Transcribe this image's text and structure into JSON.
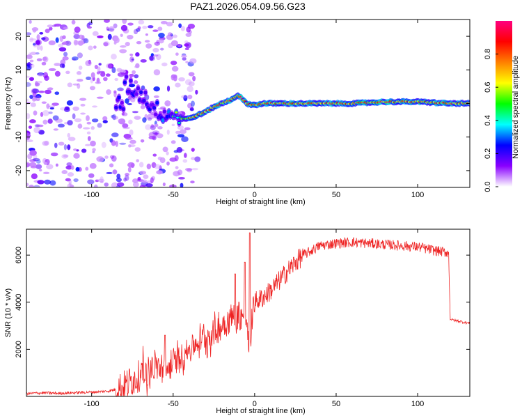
{
  "figure": {
    "title": "PAZ1.2026.054.09.56.G23"
  },
  "chart_data": [
    {
      "type": "heatmap",
      "title": "",
      "xlabel": "Height of straight line (km)",
      "ylabel": "Frequency (Hz)",
      "xlim": [
        -140,
        132
      ],
      "ylim": [
        -25,
        25
      ],
      "xticks": [
        -100,
        -50,
        0,
        50,
        100
      ],
      "yticks": [
        -20,
        -10,
        0,
        10,
        20
      ],
      "colorbar": {
        "label": "Normalized spectral amplitude",
        "range": [
          0,
          1
        ],
        "ticks": [
          0.0,
          0.2,
          0.4,
          0.6,
          0.8
        ],
        "tick_labels": [
          "0.0",
          "0.2",
          "0.4",
          "0.6",
          "0.8"
        ],
        "colormap": [
          "#ffffff",
          "#8a00ff",
          "#0000ff",
          "#00ffff",
          "#00ff00",
          "#ffff00",
          "#ff8000",
          "#ff0000",
          "#ff0080"
        ]
      },
      "ridge": [
        [
          -80,
          6
        ],
        [
          -70,
          3
        ],
        [
          -60,
          -2
        ],
        [
          -55,
          -3
        ],
        [
          -50,
          -3
        ],
        [
          -45,
          -4.5
        ],
        [
          -40,
          -4.5
        ],
        [
          -35,
          -3.5
        ],
        [
          -30,
          -2.5
        ],
        [
          -25,
          -1
        ],
        [
          -20,
          0
        ],
        [
          -15,
          1
        ],
        [
          -10,
          2.5
        ],
        [
          -8,
          1.5
        ],
        [
          -5,
          0
        ],
        [
          0,
          -0.5
        ],
        [
          5,
          0
        ],
        [
          20,
          0
        ],
        [
          40,
          0
        ],
        [
          60,
          0
        ],
        [
          80,
          0.5
        ],
        [
          100,
          0.5
        ],
        [
          120,
          0
        ],
        [
          132,
          0
        ]
      ]
    },
    {
      "type": "line",
      "title": "",
      "xlabel": "Height of straight line (km)",
      "ylabel": "SNR (10 * v/v)",
      "xlim": [
        -140,
        132
      ],
      "ylim": [
        0,
        7100
      ],
      "xticks": [
        -100,
        -50,
        0,
        50,
        100
      ],
      "yticks": [
        2000,
        4000,
        6000
      ],
      "color": "#ee2222",
      "series": [
        {
          "name": "SNR",
          "x": [
            -140,
            -130,
            -120,
            -110,
            -100,
            -90,
            -85,
            -80,
            -75,
            -70,
            -65,
            -60,
            -55,
            -50,
            -45,
            -40,
            -35,
            -30,
            -25,
            -20,
            -15,
            -10,
            -5,
            -3,
            -1,
            0,
            5,
            10,
            15,
            20,
            25,
            30,
            35,
            40,
            50,
            60,
            70,
            80,
            90,
            100,
            110,
            119,
            120,
            121,
            125,
            132
          ],
          "y": [
            120,
            150,
            130,
            160,
            180,
            220,
            300,
            400,
            700,
            900,
            1100,
            1300,
            1000,
            1400,
            1700,
            2000,
            2300,
            2500,
            2700,
            3000,
            3300,
            3500,
            3300,
            1500,
            3800,
            4000,
            4200,
            4500,
            4900,
            5300,
            5700,
            6000,
            6200,
            6400,
            6500,
            6550,
            6500,
            6450,
            6400,
            6350,
            6200,
            6100,
            3300,
            3250,
            3200,
            3100
          ]
        }
      ],
      "annotations": [
        {
          "x": -55,
          "spike_y": 2600
        },
        {
          "x": -3,
          "spike_y": 6950
        },
        {
          "x": -6,
          "spike_y": 5700
        },
        {
          "x": -12,
          "spike_y": 5200
        }
      ]
    }
  ]
}
